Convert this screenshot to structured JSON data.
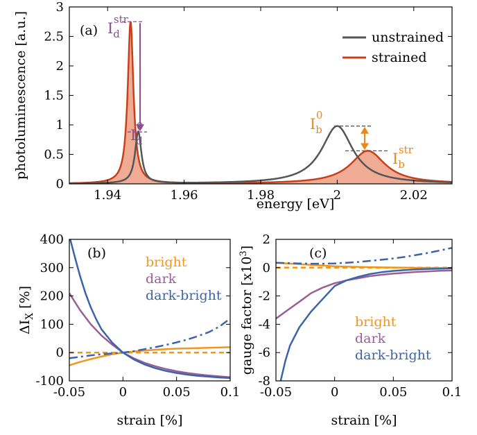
{
  "chart_data": [
    {
      "panel": "(a)",
      "type": "line",
      "xlabel": "energy [eV]",
      "ylabel": "photoluminescence [a.u.]",
      "xlim": [
        1.93,
        2.03
      ],
      "ylim": [
        0,
        3
      ],
      "xticks": [
        1.94,
        1.96,
        1.98,
        2,
        2.02
      ],
      "yticks": [
        0,
        0.5,
        1,
        1.5,
        2,
        2.5,
        3
      ],
      "legend": {
        "placement": "top-right",
        "entries": [
          "unstrained",
          "strained"
        ]
      },
      "series": [
        {
          "name": "unstrained",
          "color": "#555555",
          "peaks": [
            {
              "center": 1.948,
              "height": 0.88,
              "width": 0.001
            },
            {
              "center": 2.0,
              "height": 0.98,
              "width": 0.005
            }
          ]
        },
        {
          "name": "strained",
          "color": "#c8401a",
          "fill": "#f0ab95",
          "peaks": [
            {
              "center": 1.946,
              "height": 2.75,
              "width": 0.0009
            },
            {
              "center": 2.008,
              "height": 0.56,
              "width": 0.0055
            }
          ]
        }
      ],
      "annotations": [
        {
          "label": "I",
          "sub": "d",
          "sup": "str",
          "color": "#8c4e8c",
          "x": 1.946,
          "y": 2.75
        },
        {
          "label": "I",
          "sub": "d",
          "sup": "0",
          "color": "#8c4e8c",
          "x": 1.948,
          "y": 0.88
        },
        {
          "label": "I",
          "sub": "b",
          "sup": "0",
          "color": "#e9891c",
          "x": 2.0,
          "y": 0.98
        },
        {
          "label": "I",
          "sub": "b",
          "sup": "str",
          "color": "#e9891c",
          "x": 2.008,
          "y": 0.56
        }
      ]
    },
    {
      "panel": "(b)",
      "type": "line",
      "xlabel": "strain [%]",
      "ylabel": "ΔI",
      "ylabel_sub": "X",
      "ylabel_unit": "[%]",
      "xlim": [
        -0.05,
        0.1
      ],
      "ylim": [
        -100,
        400
      ],
      "xticks": [
        -0.05,
        0,
        0.05,
        0.1
      ],
      "yticks": [
        -100,
        0,
        100,
        200,
        300,
        400
      ],
      "legend": {
        "placement": "top-right",
        "entries": [
          "bright",
          "dark",
          "dark-bright"
        ]
      },
      "series": [
        {
          "name": "bright",
          "color": "#f0961e",
          "style": "solid",
          "points": [
            [
              -0.05,
              -45
            ],
            [
              -0.04,
              -33
            ],
            [
              -0.03,
              -23
            ],
            [
              -0.02,
              -14
            ],
            [
              -0.01,
              -6
            ],
            [
              0,
              0
            ],
            [
              0.01,
              4
            ],
            [
              0.02,
              7
            ],
            [
              0.03,
              10
            ],
            [
              0.04,
              12
            ],
            [
              0.05,
              14
            ],
            [
              0.06,
              15
            ],
            [
              0.07,
              16
            ],
            [
              0.08,
              17
            ],
            [
              0.09,
              18
            ],
            [
              0.1,
              19
            ]
          ]
        },
        {
          "name": "bright (dashed)",
          "color": "#f0961e",
          "style": "dashed",
          "points": [
            [
              -0.05,
              0
            ],
            [
              0.1,
              0
            ]
          ]
        },
        {
          "name": "dark",
          "color": "#9a5e94",
          "style": "solid",
          "points": [
            [
              -0.05,
              210
            ],
            [
              -0.04,
              150
            ],
            [
              -0.03,
              100
            ],
            [
              -0.02,
              60
            ],
            [
              -0.01,
              28
            ],
            [
              0,
              0
            ],
            [
              0.01,
              -20
            ],
            [
              0.02,
              -36
            ],
            [
              0.03,
              -48
            ],
            [
              0.04,
              -58
            ],
            [
              0.05,
              -66
            ],
            [
              0.06,
              -72
            ],
            [
              0.07,
              -77
            ],
            [
              0.08,
              -81
            ],
            [
              0.09,
              -84
            ],
            [
              0.1,
              -87
            ]
          ]
        },
        {
          "name": "dark-bright",
          "color": "#3b64a8",
          "style": "solid",
          "points": [
            [
              -0.05,
              420
            ],
            [
              -0.045,
              340
            ],
            [
              -0.04,
              270
            ],
            [
              -0.035,
              210
            ],
            [
              -0.03,
              160
            ],
            [
              -0.025,
              118
            ],
            [
              -0.02,
              82
            ],
            [
              -0.01,
              35
            ],
            [
              0,
              0
            ],
            [
              0.01,
              -24
            ],
            [
              0.02,
              -42
            ],
            [
              0.03,
              -55
            ],
            [
              0.04,
              -65
            ],
            [
              0.05,
              -72
            ],
            [
              0.06,
              -78
            ],
            [
              0.07,
              -82
            ],
            [
              0.08,
              -85
            ],
            [
              0.09,
              -88
            ],
            [
              0.1,
              -90
            ]
          ]
        },
        {
          "name": "dark-bright (dash-dot)",
          "color": "#3b64a8",
          "style": "dashdot",
          "points": [
            [
              -0.05,
              -20
            ],
            [
              -0.04,
              -15
            ],
            [
              -0.03,
              -10
            ],
            [
              -0.02,
              -6
            ],
            [
              -0.01,
              -3
            ],
            [
              0,
              0
            ],
            [
              0.01,
              5
            ],
            [
              0.02,
              12
            ],
            [
              0.03,
              19
            ],
            [
              0.04,
              27
            ],
            [
              0.05,
              36
            ],
            [
              0.06,
              46
            ],
            [
              0.07,
              58
            ],
            [
              0.08,
              72
            ],
            [
              0.09,
              92
            ],
            [
              0.1,
              120
            ]
          ]
        }
      ]
    },
    {
      "panel": "(c)",
      "type": "line",
      "xlabel": "strain [%]",
      "ylabel": "gauge factor [x10",
      "ylabel_sup": "3",
      "ylabel_end": "]",
      "xlim": [
        -0.05,
        0.1
      ],
      "ylim": [
        -8,
        2
      ],
      "xticks": [
        -0.05,
        0,
        0.05,
        0.1
      ],
      "yticks": [
        -8,
        -6,
        -4,
        -2,
        0,
        2
      ],
      "legend": {
        "placement": "bottom-right",
        "entries": [
          "bright",
          "dark",
          "dark-bright"
        ]
      },
      "series": [
        {
          "name": "bright",
          "color": "#f0961e",
          "style": "solid",
          "points": [
            [
              -0.05,
              0.35
            ],
            [
              -0.04,
              0.3
            ],
            [
              -0.03,
              0.25
            ],
            [
              -0.02,
              0.2
            ],
            [
              -0.01,
              0.15
            ],
            [
              0,
              0.1
            ],
            [
              0.02,
              0.05
            ],
            [
              0.04,
              0.02
            ],
            [
              0.06,
              0
            ],
            [
              0.08,
              -0.02
            ],
            [
              0.1,
              -0.03
            ]
          ]
        },
        {
          "name": "bright (dashed)",
          "color": "#f0961e",
          "style": "dashed",
          "points": [
            [
              -0.05,
              0
            ],
            [
              0.1,
              0
            ]
          ]
        },
        {
          "name": "dark",
          "color": "#9a5e94",
          "style": "solid",
          "points": [
            [
              -0.05,
              -3.6
            ],
            [
              -0.04,
              -3.0
            ],
            [
              -0.03,
              -2.4
            ],
            [
              -0.02,
              -1.8
            ],
            [
              -0.01,
              -1.4
            ],
            [
              0,
              -1.1
            ],
            [
              0.01,
              -0.9
            ],
            [
              0.02,
              -0.75
            ],
            [
              0.03,
              -0.6
            ],
            [
              0.04,
              -0.5
            ],
            [
              0.05,
              -0.42
            ],
            [
              0.06,
              -0.36
            ],
            [
              0.07,
              -0.3
            ],
            [
              0.08,
              -0.26
            ],
            [
              0.09,
              -0.22
            ],
            [
              0.1,
              -0.2
            ]
          ]
        },
        {
          "name": "dark-bright",
          "color": "#3b64a8",
          "style": "solid",
          "points": [
            [
              -0.046,
              -8
            ],
            [
              -0.042,
              -6.6
            ],
            [
              -0.038,
              -5.5
            ],
            [
              -0.03,
              -4.2
            ],
            [
              -0.02,
              -3.1
            ],
            [
              -0.01,
              -2.2
            ],
            [
              0,
              -1.3
            ],
            [
              0.01,
              -0.9
            ],
            [
              0.02,
              -0.65
            ],
            [
              0.03,
              -0.45
            ],
            [
              0.04,
              -0.32
            ],
            [
              0.05,
              -0.23
            ],
            [
              0.06,
              -0.17
            ],
            [
              0.07,
              -0.12
            ],
            [
              0.08,
              -0.09
            ],
            [
              0.09,
              -0.07
            ],
            [
              0.1,
              -0.05
            ]
          ]
        },
        {
          "name": "dark-bright (dash-dot)",
          "color": "#3b64a8",
          "style": "dashdot",
          "points": [
            [
              -0.05,
              0.35
            ],
            [
              -0.04,
              0.32
            ],
            [
              -0.03,
              0.3
            ],
            [
              -0.02,
              0.28
            ],
            [
              -0.01,
              0.28
            ],
            [
              0,
              0.3
            ],
            [
              0.01,
              0.35
            ],
            [
              0.02,
              0.4
            ],
            [
              0.03,
              0.48
            ],
            [
              0.04,
              0.56
            ],
            [
              0.05,
              0.65
            ],
            [
              0.06,
              0.76
            ],
            [
              0.07,
              0.9
            ],
            [
              0.08,
              1.05
            ],
            [
              0.09,
              1.22
            ],
            [
              0.1,
              1.4
            ]
          ]
        }
      ]
    }
  ]
}
